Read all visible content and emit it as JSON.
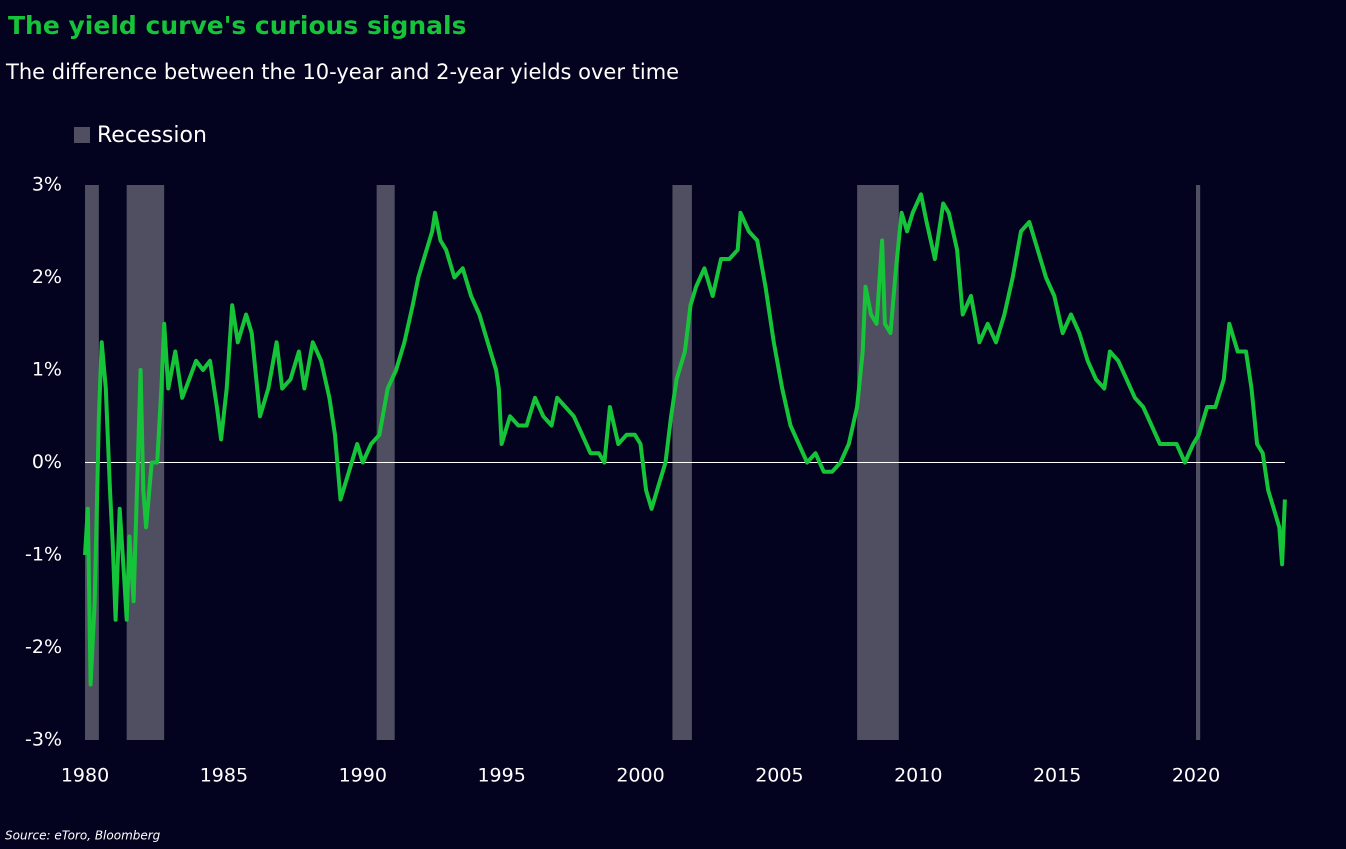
{
  "chart_data": {
    "type": "line",
    "title": "The yield curve's curious signals",
    "subtitle": "The difference between the 10-year and 2-year yields over time",
    "source": "Source: eToro, Bloomberg",
    "recession": {
      "label": "Recession",
      "color": "#4f4f61",
      "periods": [
        [
          1980.0,
          1980.5
        ],
        [
          1981.5,
          1982.85
        ],
        [
          1990.5,
          1991.15
        ],
        [
          2001.15,
          2001.85
        ],
        [
          2007.8,
          2009.3
        ],
        [
          2020.0,
          2020.15
        ]
      ]
    },
    "series": [
      {
        "color": "#16c43a",
        "x": [
          1980.0,
          1980.1,
          1980.2,
          1980.35,
          1980.5,
          1980.6,
          1980.75,
          1980.9,
          1981.0,
          1981.1,
          1981.25,
          1981.4,
          1981.5,
          1981.6,
          1981.75,
          1981.9,
          1982.0,
          1982.1,
          1982.2,
          1982.4,
          1982.6,
          1982.75,
          1982.85,
          1983.0,
          1983.25,
          1983.5,
          1983.75,
          1984.0,
          1984.25,
          1984.5,
          1984.75,
          1984.9,
          1985.1,
          1985.3,
          1985.5,
          1985.8,
          1986.0,
          1986.3,
          1986.6,
          1986.9,
          1987.1,
          1987.4,
          1987.7,
          1987.9,
          1988.2,
          1988.5,
          1988.8,
          1989.0,
          1989.2,
          1989.5,
          1989.8,
          1990.0,
          1990.3,
          1990.6,
          1990.9,
          1991.2,
          1991.5,
          1991.8,
          1992.0,
          1992.3,
          1992.5,
          1992.6,
          1992.8,
          1993.0,
          1993.3,
          1993.6,
          1993.9,
          1994.2,
          1994.5,
          1994.8,
          1994.9,
          1995.0,
          1995.3,
          1995.6,
          1995.9,
          1996.2,
          1996.5,
          1996.8,
          1997.0,
          1997.3,
          1997.6,
          1997.9,
          1998.2,
          1998.5,
          1998.7,
          1998.9,
          1999.2,
          1999.5,
          1999.8,
          2000.0,
          2000.2,
          2000.4,
          2000.7,
          2000.9,
          2001.1,
          2001.3,
          2001.6,
          2001.8,
          2002.0,
          2002.3,
          2002.6,
          2002.9,
          2003.2,
          2003.5,
          2003.6,
          2003.9,
          2004.2,
          2004.5,
          2004.8,
          2005.1,
          2005.4,
          2005.7,
          2006.0,
          2006.3,
          2006.6,
          2006.9,
          2007.2,
          2007.5,
          2007.8,
          2008.0,
          2008.1,
          2008.3,
          2008.5,
          2008.7,
          2008.8,
          2009.0,
          2009.2,
          2009.4,
          2009.6,
          2009.8,
          2010.1,
          2010.3,
          2010.6,
          2010.9,
          2011.1,
          2011.4,
          2011.6,
          2011.9,
          2012.2,
          2012.5,
          2012.8,
          2013.1,
          2013.4,
          2013.7,
          2014.0,
          2014.3,
          2014.6,
          2014.9,
          2015.2,
          2015.5,
          2015.8,
          2016.1,
          2016.4,
          2016.7,
          2016.9,
          2017.2,
          2017.5,
          2017.8,
          2018.1,
          2018.4,
          2018.7,
          2019.0,
          2019.3,
          2019.6,
          2019.9,
          2020.1,
          2020.4,
          2020.7,
          2021.0,
          2021.2,
          2021.5,
          2021.8,
          2022.0,
          2022.2,
          2022.4,
          2022.6,
          2022.8,
          2023.0,
          2023.1,
          2023.2
        ],
        "values": [
          -1.0,
          -0.5,
          -2.4,
          -1.5,
          0.5,
          1.3,
          0.8,
          -0.3,
          -0.9,
          -1.7,
          -0.5,
          -1.2,
          -1.7,
          -0.8,
          -1.5,
          0.0,
          1.0,
          -0.3,
          -0.7,
          0.0,
          0.0,
          0.8,
          1.5,
          0.8,
          1.2,
          0.7,
          0.9,
          1.1,
          1.0,
          1.1,
          0.6,
          0.25,
          0.8,
          1.7,
          1.3,
          1.6,
          1.4,
          0.5,
          0.8,
          1.3,
          0.8,
          0.9,
          1.2,
          0.8,
          1.3,
          1.1,
          0.7,
          0.3,
          -0.4,
          -0.1,
          0.2,
          0.0,
          0.2,
          0.3,
          0.8,
          1.0,
          1.3,
          1.7,
          2.0,
          2.3,
          2.5,
          2.7,
          2.4,
          2.3,
          2.0,
          2.1,
          1.8,
          1.6,
          1.3,
          1.0,
          0.8,
          0.2,
          0.5,
          0.4,
          0.4,
          0.7,
          0.5,
          0.4,
          0.7,
          0.6,
          0.5,
          0.3,
          0.1,
          0.1,
          0.0,
          0.6,
          0.2,
          0.3,
          0.3,
          0.2,
          -0.3,
          -0.5,
          -0.2,
          0.0,
          0.5,
          0.9,
          1.2,
          1.7,
          1.9,
          2.1,
          1.8,
          2.2,
          2.2,
          2.3,
          2.7,
          2.5,
          2.4,
          1.9,
          1.3,
          0.8,
          0.4,
          0.2,
          0.0,
          0.1,
          -0.1,
          -0.1,
          0.0,
          0.2,
          0.6,
          1.2,
          1.9,
          1.6,
          1.5,
          2.4,
          1.5,
          1.4,
          2.1,
          2.7,
          2.5,
          2.7,
          2.9,
          2.6,
          2.2,
          2.8,
          2.7,
          2.3,
          1.6,
          1.8,
          1.3,
          1.5,
          1.3,
          1.6,
          2.0,
          2.5,
          2.6,
          2.3,
          2.0,
          1.8,
          1.4,
          1.6,
          1.4,
          1.1,
          0.9,
          0.8,
          1.2,
          1.1,
          0.9,
          0.7,
          0.6,
          0.4,
          0.2,
          0.2,
          0.2,
          0.0,
          0.2,
          0.3,
          0.6,
          0.6,
          0.9,
          1.5,
          1.2,
          1.2,
          0.8,
          0.2,
          0.1,
          -0.3,
          -0.5,
          -0.7,
          -1.1,
          -0.4
        ]
      }
    ],
    "xlim": [
      1980,
      2023.2
    ],
    "xticks": [
      1980,
      1985,
      1990,
      1995,
      2000,
      2005,
      2010,
      2015,
      2020
    ],
    "ylim": [
      -3,
      3
    ],
    "yticks": [
      {
        "value": 3,
        "label": "3%"
      },
      {
        "value": 2,
        "label": "2%"
      },
      {
        "value": 1,
        "label": "1%"
      },
      {
        "value": 0,
        "label": "0%"
      },
      {
        "value": -1,
        "label": "-1%"
      },
      {
        "value": -2,
        "label": "-2%"
      },
      {
        "value": -3,
        "label": "-3%"
      }
    ],
    "zero_line": true,
    "grid": false
  }
}
